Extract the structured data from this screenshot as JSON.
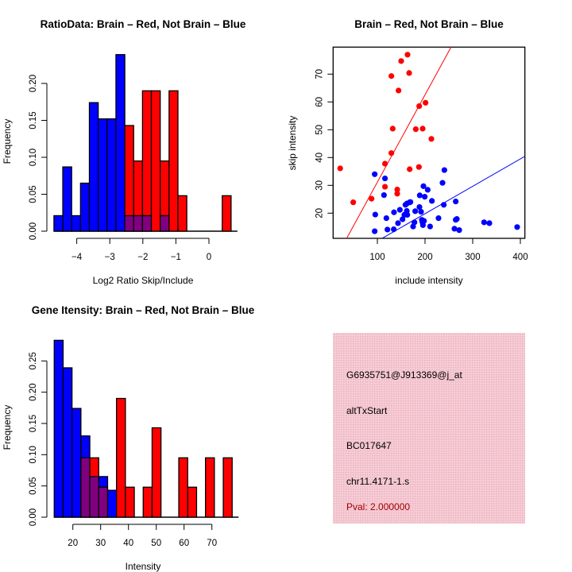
{
  "colors": {
    "brain": "#ff0000",
    "not_brain": "#0000ff",
    "overlap": "#800080",
    "panel_bg": "#f2c4cf",
    "pval": "#a00000"
  },
  "chart_data": [
    {
      "type": "bar",
      "title": "RatioData: Brain – Red, Not Brain – Blue",
      "xlabel": "Log2 Ratio Skip/Include",
      "ylabel": "Frequency",
      "bin_start": -4.69,
      "bin_width": 0.268,
      "series": [
        {
          "name": "Not Brain",
          "color": "blue",
          "values": [
            0.021,
            0.087,
            0.021,
            0.065,
            0.174,
            0.152,
            0.152,
            0.239,
            0.021,
            0.021,
            0.021,
            0,
            0.021,
            0,
            0,
            0,
            0,
            0,
            0,
            0
          ]
        },
        {
          "name": "Brain",
          "color": "red",
          "values": [
            0,
            0,
            0,
            0,
            0,
            0,
            0,
            0,
            0.143,
            0.095,
            0.19,
            0.19,
            0.095,
            0.19,
            0.048,
            0,
            0,
            0,
            0,
            0.048
          ]
        }
      ],
      "xticks": [
        -4,
        -3,
        -2,
        -1,
        0
      ],
      "xtick_labels": [
        "−4",
        "−3",
        "−2",
        "−1",
        "0"
      ],
      "yticks": [
        0,
        0.05,
        0.1,
        0.15,
        0.2
      ],
      "ytick_labels": [
        "0.00",
        "0.05",
        "0.10",
        "0.15",
        "0.20"
      ],
      "ylim": [
        0,
        0.24
      ]
    },
    {
      "type": "bar",
      "title": "Gene Itensity: Brain – Red, Not Brain – Blue",
      "xlabel": "Intensity",
      "ylabel": "Frequency",
      "bin_start": 13.3,
      "bin_width": 3.2,
      "series": [
        {
          "name": "Not Brain",
          "color": "blue",
          "values": [
            0.283,
            0.239,
            0.174,
            0.13,
            0.065,
            0.065,
            0.043,
            0,
            0,
            0,
            0,
            0,
            0,
            0,
            0,
            0,
            0,
            0,
            0,
            0
          ]
        },
        {
          "name": "Brain",
          "color": "red",
          "values": [
            0,
            0,
            0,
            0.095,
            0.095,
            0.048,
            0,
            0.19,
            0.048,
            0,
            0.048,
            0.143,
            0,
            0,
            0.095,
            0.048,
            0,
            0.095,
            0,
            0.095
          ]
        }
      ],
      "xticks": [
        20,
        30,
        40,
        50,
        60,
        70
      ],
      "xtick_labels": [
        "20",
        "30",
        "40",
        "50",
        "60",
        "70"
      ],
      "yticks": [
        0,
        0.05,
        0.1,
        0.15,
        0.2,
        0.25
      ],
      "ytick_labels": [
        "0.00",
        "0.05",
        "0.10",
        "0.15",
        "0.20",
        "0.25"
      ],
      "ylim": [
        0,
        0.283
      ]
    },
    {
      "type": "scatter",
      "title": "Brain – Red, Not Brain – Blue",
      "xlabel": "include intensity",
      "ylabel": "skip intensity",
      "xlim": [
        7,
        410
      ],
      "ylim": [
        11,
        80
      ],
      "xticks": [
        100,
        200,
        300,
        400
      ],
      "xtick_labels": [
        "100",
        "200",
        "300",
        "400"
      ],
      "yticks": [
        20,
        30,
        40,
        50,
        60,
        70
      ],
      "ytick_labels": [
        "20",
        "30",
        "40",
        "50",
        "60",
        "70"
      ],
      "series": [
        {
          "name": "Brain",
          "color": "red",
          "fit": {
            "slope": 0.314,
            "intercept": -0.25
          },
          "points": [
            [
              22,
              36.1
            ],
            [
              49.4,
              23.9
            ],
            [
              87.8,
              25.2
            ],
            [
              116,
              29.5
            ],
            [
              116,
              37.8
            ],
            [
              129.4,
              41.6
            ],
            [
              129.4,
              69.3
            ],
            [
              132.2,
              50.4
            ],
            [
              141.7,
              27.0
            ],
            [
              141.7,
              28.5
            ],
            [
              144.4,
              64.1
            ],
            [
              150,
              74.7
            ],
            [
              163.3,
              77
            ],
            [
              166.7,
              70.4
            ],
            [
              167.8,
              35.8
            ],
            [
              180.6,
              50.2
            ],
            [
              187.8,
              58.5
            ],
            [
              187.2,
              36.6
            ],
            [
              195,
              50.4
            ],
            [
              201.1,
              59.7
            ],
            [
              213.3,
              46.7
            ]
          ]
        },
        {
          "name": "Not Brain",
          "color": "blue",
          "fit": {
            "slope": 0.0985,
            "intercept": 0.1
          },
          "points": [
            [
              94.4,
              34
            ],
            [
              116,
              32.5
            ],
            [
              113.9,
              26.5
            ],
            [
              95.6,
              19.5
            ],
            [
              94.4,
              13.5
            ],
            [
              118.9,
              18.2
            ],
            [
              121.1,
              14.1
            ],
            [
              134.9,
              20.3
            ],
            [
              134.4,
              14.2
            ],
            [
              143.3,
              16.4
            ],
            [
              147.2,
              21.2
            ],
            [
              152.8,
              17.8
            ],
            [
              156.7,
              19.4
            ],
            [
              158.9,
              23
            ],
            [
              162.2,
              23.5
            ],
            [
              161.7,
              20.8
            ],
            [
              162.8,
              19.4
            ],
            [
              167.8,
              23.9
            ],
            [
              169.4,
              24
            ],
            [
              175,
              15.2
            ],
            [
              177.8,
              16.7
            ],
            [
              179.4,
              20.7
            ],
            [
              188.3,
              22.2
            ],
            [
              188.9,
              26.4
            ],
            [
              191.7,
              20.5
            ],
            [
              193.3,
              17.6
            ],
            [
              194.4,
              16.8
            ],
            [
              195.6,
              15.7
            ],
            [
              196.7,
              29.7
            ],
            [
              197.8,
              17.2
            ],
            [
              199.4,
              25.9
            ],
            [
              205.6,
              28.4
            ],
            [
              210.6,
              15.2
            ],
            [
              214.4,
              24.4
            ],
            [
              228.3,
              18.2
            ],
            [
              236.7,
              30.9
            ],
            [
              240.6,
              35.5
            ],
            [
              239.4,
              23
            ],
            [
              264.4,
              24.2
            ],
            [
              261.7,
              14.4
            ],
            [
              264.4,
              17.6
            ],
            [
              266.7,
              17.9
            ],
            [
              271.7,
              13.9
            ],
            [
              323.9,
              16.7
            ],
            [
              335,
              16.4
            ],
            [
              393.3,
              15
            ]
          ]
        }
      ]
    }
  ],
  "info_panel": {
    "probe_id": "G6935751@J913369@j_at",
    "event_type": "altTxStart",
    "accession": "BC017647",
    "location": "chr11.4171-1.s",
    "pval": "Pval: 2.000000"
  }
}
